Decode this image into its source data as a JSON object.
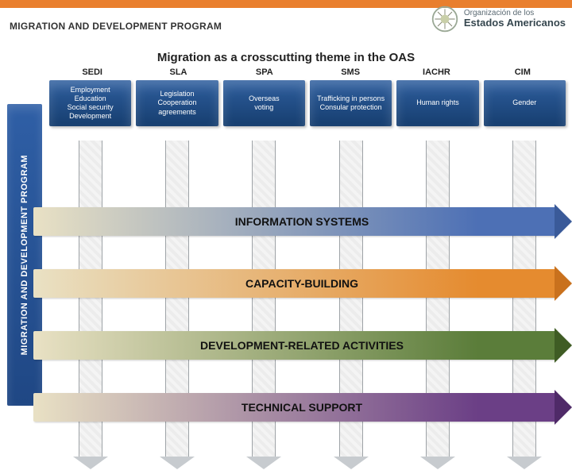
{
  "topbar_color": "#e97f2e",
  "header": {
    "bg": "#ffffff",
    "title": "MIGRATION AND DEVELOPMENT PROGRAM",
    "title_color": "#333333",
    "logo": {
      "ring": "#b7c2ab",
      "line1": "Organización de los",
      "line2": "Estados Americanos"
    }
  },
  "subtitle": "Migration as a crosscutting theme in the OAS",
  "columns": [
    {
      "code": "SEDI",
      "items": [
        "Employment",
        "Education",
        "Social security",
        "Development"
      ]
    },
    {
      "code": "SLA",
      "items": [
        "Legislation",
        "Cooperation",
        "agreements"
      ]
    },
    {
      "code": "SPA",
      "items": [
        "Overseas",
        "voting"
      ]
    },
    {
      "code": "SMS",
      "items": [
        "Trafficking in persons",
        "Consular protection"
      ]
    },
    {
      "code": "IACHR",
      "items": [
        "Human rights"
      ]
    },
    {
      "code": "CIM",
      "items": [
        "Gender"
      ]
    }
  ],
  "box_gradient": {
    "from": "#2e5e9e",
    "to": "#163e6f"
  },
  "down_arrow": {
    "fill": "#f4f4f4",
    "border": "#9ea3a7",
    "head": "#c7cbcf"
  },
  "ribbons": [
    {
      "label": "INFORMATION SYSTEMS",
      "from": "#e9e1c4",
      "to": "#4d70b5",
      "head": "#3a5a99"
    },
    {
      "label": "CAPACITY-BUILDING",
      "from": "#e9e1c4",
      "to": "#e58b2f",
      "head": "#c9711d"
    },
    {
      "label": "DEVELOPMENT-RELATED ACTIVITIES",
      "from": "#e9e1c4",
      "to": "#5b7d3a",
      "head": "#3f5c24"
    },
    {
      "label": "TECHNICAL SUPPORT",
      "from": "#e9e1c4",
      "to": "#6b3f86",
      "head": "#4f2a68"
    }
  ],
  "sidebar_label": "MIGRATION AND DEVELOPMENT PROGRAM"
}
